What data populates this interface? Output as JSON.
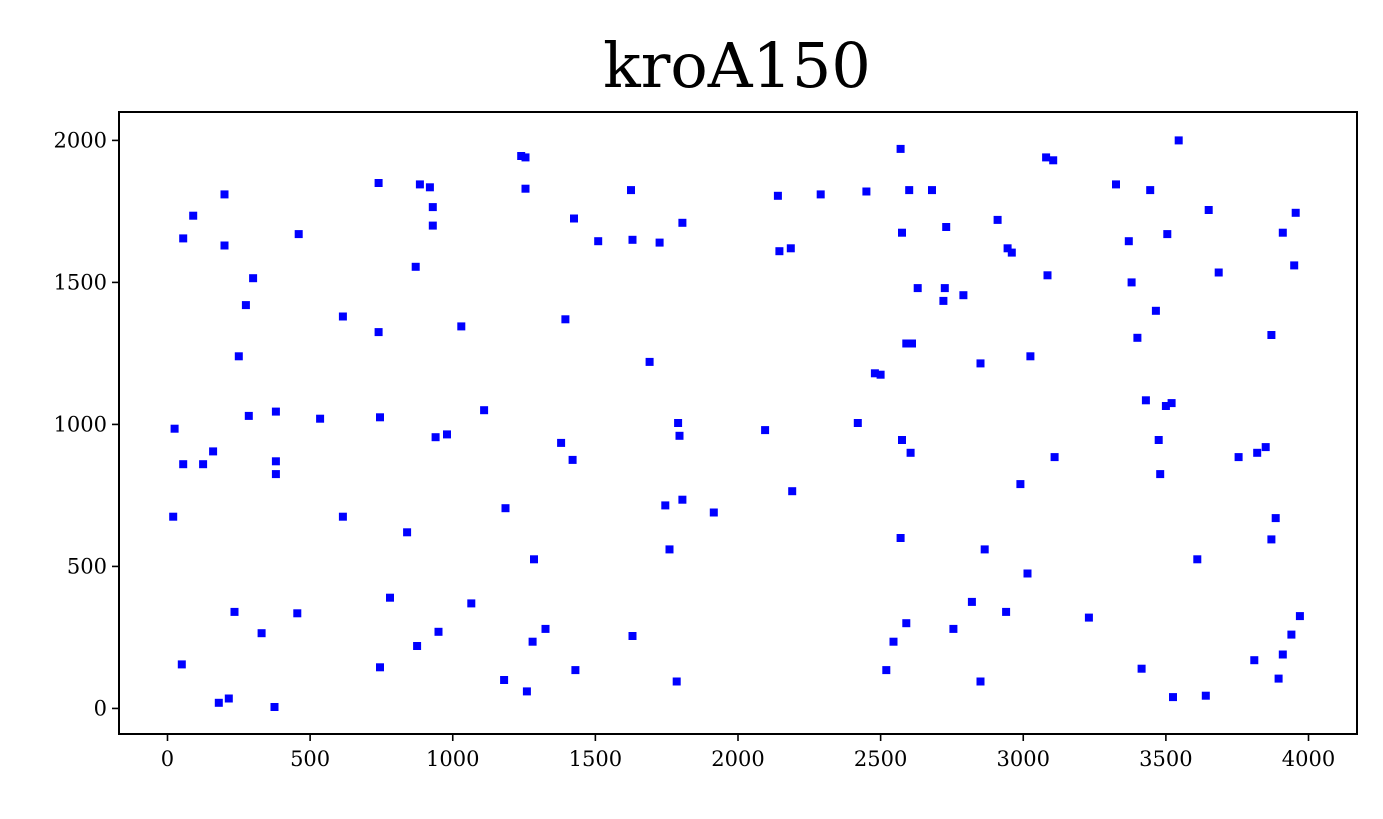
{
  "chart_data": {
    "type": "scatter",
    "title": "kroA150",
    "xlabel": "",
    "ylabel": "",
    "xlim": [
      -170,
      4170
    ],
    "ylim": [
      -90,
      2100
    ],
    "xticks": [
      0,
      500,
      1000,
      1500,
      2000,
      2500,
      3000,
      3500,
      4000
    ],
    "yticks": [
      0,
      500,
      1000,
      1500,
      2000
    ],
    "grid": false,
    "marker_color": "#0000ff",
    "marker": "square",
    "series": [
      {
        "points": [
          [
            20,
            675
          ],
          [
            25,
            985
          ],
          [
            50,
            155
          ],
          [
            55,
            1655
          ],
          [
            55,
            860
          ],
          [
            90,
            1735
          ],
          [
            125,
            860
          ],
          [
            160,
            905
          ],
          [
            180,
            20
          ],
          [
            200,
            1810
          ],
          [
            200,
            1630
          ],
          [
            215,
            35
          ],
          [
            235,
            340
          ],
          [
            250,
            1240
          ],
          [
            275,
            1420
          ],
          [
            285,
            1030
          ],
          [
            300,
            1515
          ],
          [
            330,
            265
          ],
          [
            375,
            5
          ],
          [
            380,
            1045
          ],
          [
            380,
            870
          ],
          [
            380,
            825
          ],
          [
            455,
            335
          ],
          [
            460,
            1670
          ],
          [
            535,
            1020
          ],
          [
            615,
            1380
          ],
          [
            615,
            675
          ],
          [
            740,
            1850
          ],
          [
            740,
            1325
          ],
          [
            745,
            1025
          ],
          [
            745,
            145
          ],
          [
            780,
            390
          ],
          [
            840,
            620
          ],
          [
            870,
            1555
          ],
          [
            875,
            220
          ],
          [
            885,
            1845
          ],
          [
            920,
            1835
          ],
          [
            930,
            1765
          ],
          [
            930,
            1700
          ],
          [
            940,
            955
          ],
          [
            950,
            270
          ],
          [
            980,
            965
          ],
          [
            1030,
            1345
          ],
          [
            1065,
            370
          ],
          [
            1110,
            1050
          ],
          [
            1180,
            100
          ],
          [
            1185,
            705
          ],
          [
            1240,
            1945
          ],
          [
            1255,
            1940
          ],
          [
            1255,
            1830
          ],
          [
            1260,
            60
          ],
          [
            1280,
            235
          ],
          [
            1285,
            525
          ],
          [
            1325,
            280
          ],
          [
            1380,
            935
          ],
          [
            1395,
            1370
          ],
          [
            1420,
            875
          ],
          [
            1425,
            1725
          ],
          [
            1430,
            135
          ],
          [
            1510,
            1645
          ],
          [
            1625,
            1825
          ],
          [
            1630,
            1650
          ],
          [
            1630,
            255
          ],
          [
            1690,
            1220
          ],
          [
            1725,
            1640
          ],
          [
            1745,
            715
          ],
          [
            1760,
            560
          ],
          [
            1785,
            95
          ],
          [
            1790,
            1005
          ],
          [
            1795,
            960
          ],
          [
            1805,
            735
          ],
          [
            1805,
            1710
          ],
          [
            1915,
            690
          ],
          [
            2095,
            980
          ],
          [
            2140,
            1805
          ],
          [
            2145,
            1610
          ],
          [
            2185,
            1620
          ],
          [
            2190,
            765
          ],
          [
            2290,
            1810
          ],
          [
            2420,
            1005
          ],
          [
            2450,
            1820
          ],
          [
            2480,
            1180
          ],
          [
            2500,
            1175
          ],
          [
            2520,
            135
          ],
          [
            2545,
            235
          ],
          [
            2570,
            1970
          ],
          [
            2570,
            600
          ],
          [
            2575,
            1675
          ],
          [
            2575,
            945
          ],
          [
            2590,
            300
          ],
          [
            2590,
            1285
          ],
          [
            2600,
            1825
          ],
          [
            2605,
            900
          ],
          [
            2610,
            1285
          ],
          [
            2630,
            1480
          ],
          [
            2680,
            1825
          ],
          [
            2720,
            1435
          ],
          [
            2725,
            1480
          ],
          [
            2730,
            1695
          ],
          [
            2755,
            280
          ],
          [
            2790,
            1455
          ],
          [
            2820,
            375
          ],
          [
            2850,
            1215
          ],
          [
            2850,
            95
          ],
          [
            2865,
            560
          ],
          [
            2910,
            1720
          ],
          [
            2940,
            340
          ],
          [
            2945,
            1620
          ],
          [
            2960,
            1605
          ],
          [
            2990,
            790
          ],
          [
            3015,
            475
          ],
          [
            3025,
            1240
          ],
          [
            3080,
            1940
          ],
          [
            3085,
            1525
          ],
          [
            3105,
            1930
          ],
          [
            3110,
            885
          ],
          [
            3230,
            320
          ],
          [
            3325,
            1845
          ],
          [
            3370,
            1645
          ],
          [
            3380,
            1500
          ],
          [
            3400,
            1305
          ],
          [
            3415,
            140
          ],
          [
            3430,
            1085
          ],
          [
            3445,
            1825
          ],
          [
            3465,
            1400
          ],
          [
            3475,
            945
          ],
          [
            3480,
            825
          ],
          [
            3500,
            1065
          ],
          [
            3505,
            1670
          ],
          [
            3520,
            1075
          ],
          [
            3525,
            40
          ],
          [
            3545,
            2000
          ],
          [
            3610,
            525
          ],
          [
            3640,
            45
          ],
          [
            3650,
            1755
          ],
          [
            3685,
            1535
          ],
          [
            3755,
            885
          ],
          [
            3810,
            170
          ],
          [
            3820,
            900
          ],
          [
            3850,
            920
          ],
          [
            3870,
            1315
          ],
          [
            3870,
            595
          ],
          [
            3885,
            670
          ],
          [
            3895,
            105
          ],
          [
            3910,
            1675
          ],
          [
            3910,
            190
          ],
          [
            3940,
            260
          ],
          [
            3950,
            1560
          ],
          [
            3955,
            1745
          ],
          [
            3970,
            325
          ]
        ]
      }
    ]
  }
}
